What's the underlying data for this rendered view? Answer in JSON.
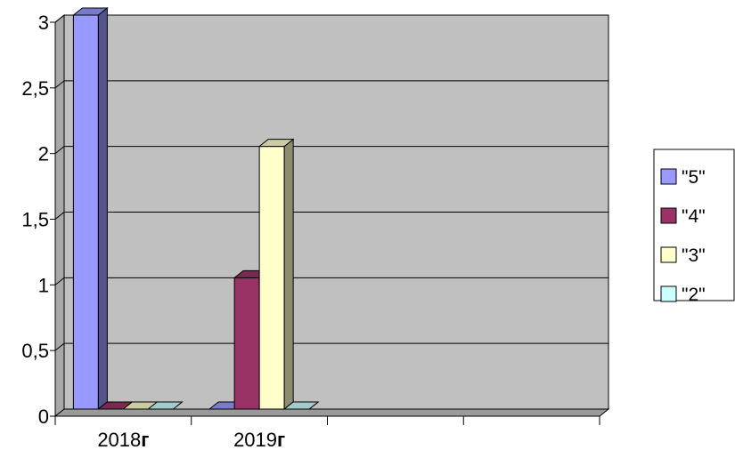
{
  "chart_data": {
    "type": "bar",
    "subtype": "3d-clustered-column",
    "categories": [
      "2018",
      "2019",
      "",
      ""
    ],
    "category_suffix": "г",
    "series": [
      {
        "name": "\"5\"",
        "values": [
          3,
          0,
          0,
          0
        ],
        "color": "#9999ff"
      },
      {
        "name": "\"4\"",
        "values": [
          0,
          1,
          0,
          0
        ],
        "color": "#993366"
      },
      {
        "name": "\"3\"",
        "values": [
          0,
          2,
          0,
          0
        ],
        "color": "#ffffcc"
      },
      {
        "name": "\"2\"",
        "values": [
          0,
          0,
          0,
          0
        ],
        "color": "#ccffff"
      }
    ],
    "y_ticks": [
      "0",
      "0,5",
      "1",
      "1,5",
      "2",
      "2,5",
      "3"
    ],
    "ylim": [
      0,
      3
    ],
    "grid": true,
    "legend_position": "right",
    "plot_background": "#c0c0c0"
  }
}
